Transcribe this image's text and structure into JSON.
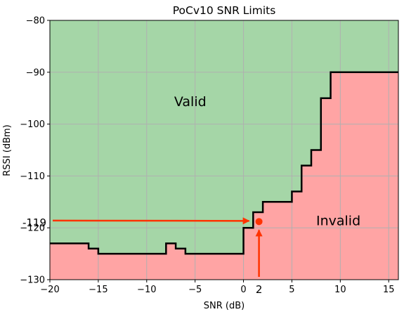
{
  "colors": {
    "valid_fill": "#a5d6a7",
    "invalid_fill": "#ffa4a4",
    "boundary": "#000000",
    "grid": "#b0b0b0",
    "annotation": "#ff3300"
  },
  "chart_data": {
    "type": "area",
    "title": "PoCv10 SNR Limits",
    "xlabel": "SNR (dB)",
    "ylabel": "RSSI (dBm)",
    "xlim": [
      -20,
      16
    ],
    "ylim": [
      -130,
      -80
    ],
    "grid": true,
    "x_ticks": [
      -20,
      -15,
      -10,
      -5,
      0,
      5,
      10,
      15
    ],
    "y_ticks": [
      -130,
      -120,
      -110,
      -100,
      -90,
      -80
    ],
    "x_tick_labels": [
      "−20",
      "−15",
      "−10",
      "−5",
      "0",
      "5",
      "10",
      "15"
    ],
    "y_tick_labels": [
      "−130",
      "−120",
      "−110",
      "−100",
      "−90",
      "−80"
    ],
    "regions": [
      {
        "label": "Valid",
        "position": "above boundary",
        "label_at": [
          -5.5,
          -96.5
        ]
      },
      {
        "label": "Invalid",
        "position": "below boundary",
        "label_at": [
          9.8,
          -119.5
        ]
      }
    ],
    "boundary_step": [
      [
        -20,
        -123
      ],
      [
        -16,
        -123
      ],
      [
        -16,
        -124
      ],
      [
        -15,
        -124
      ],
      [
        -15,
        -125
      ],
      [
        -8,
        -125
      ],
      [
        -8,
        -123
      ],
      [
        -7,
        -123
      ],
      [
        -7,
        -124
      ],
      [
        -6,
        -124
      ],
      [
        -6,
        -125
      ],
      [
        0,
        -125
      ],
      [
        0,
        -120
      ],
      [
        1,
        -120
      ],
      [
        1,
        -117
      ],
      [
        2,
        -117
      ],
      [
        2,
        -115
      ],
      [
        5,
        -115
      ],
      [
        5,
        -113
      ],
      [
        6,
        -113
      ],
      [
        6,
        -108
      ],
      [
        7,
        -108
      ],
      [
        7,
        -105
      ],
      [
        8,
        -105
      ],
      [
        8,
        -95
      ],
      [
        9,
        -95
      ],
      [
        9,
        -90
      ],
      [
        16,
        -90
      ]
    ],
    "point": {
      "x": 1.6,
      "y": -118.8
    },
    "annotations": [
      {
        "text": "-119",
        "axis": "y",
        "value": -119
      },
      {
        "text": "2",
        "axis": "x",
        "value": 2
      }
    ]
  }
}
